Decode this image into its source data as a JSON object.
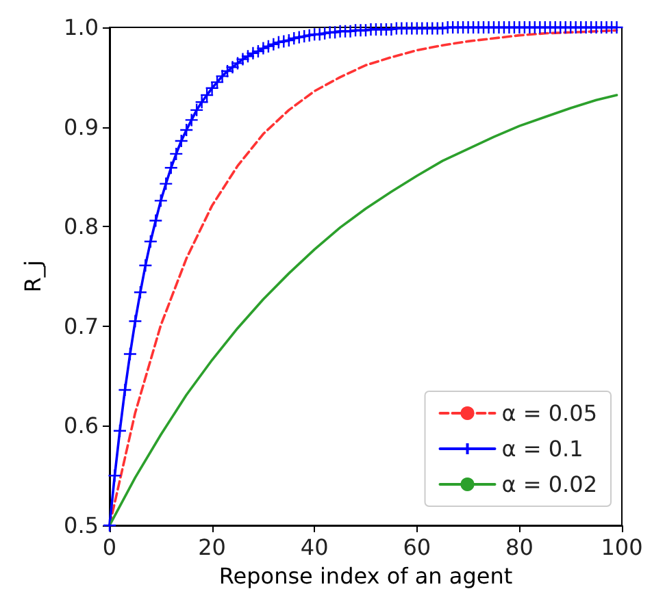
{
  "chart_data": {
    "type": "line",
    "xlabel": "Reponse index of an agent",
    "ylabel": "R_j",
    "xlim": [
      0,
      100
    ],
    "xticks": [
      0,
      20,
      40,
      60,
      80,
      100
    ],
    "ylim": [
      0.5,
      1.0
    ],
    "yticks": [
      0.5,
      0.6,
      0.7,
      0.8,
      0.9,
      {
        "value": 1.0,
        "label": "1.0"
      }
    ],
    "grid": false,
    "legend": "bottom right",
    "series": [
      {
        "name": "α = 0.05",
        "color": "#ff3333",
        "line_style": "dashed",
        "marker": "none",
        "x": [
          0,
          5,
          10,
          15,
          20,
          25,
          30,
          35,
          40,
          45,
          50,
          55,
          60,
          65,
          70,
          75,
          80,
          85,
          90,
          95,
          99
        ],
        "values": [
          0.5,
          0.613,
          0.701,
          0.768,
          0.821,
          0.861,
          0.893,
          0.917,
          0.936,
          0.95,
          0.962,
          0.97,
          0.977,
          0.982,
          0.986,
          0.989,
          0.992,
          0.994,
          0.995,
          0.996,
          0.997
        ]
      },
      {
        "name": "α = 0.1",
        "color": "#0000ff",
        "line_style": "solid",
        "marker": "cross",
        "x": [
          0,
          1,
          2,
          3,
          4,
          5,
          6,
          7,
          8,
          9,
          10,
          11,
          12,
          13,
          14,
          15,
          16,
          17,
          18,
          19,
          20,
          21,
          22,
          23,
          24,
          25,
          26,
          27,
          28,
          29,
          30,
          31,
          32,
          33,
          34,
          35,
          36,
          37,
          38,
          39,
          40,
          41,
          42,
          43,
          44,
          45,
          46,
          47,
          48,
          49,
          50,
          51,
          52,
          53,
          54,
          55,
          56,
          57,
          58,
          59,
          60,
          61,
          62,
          63,
          64,
          65,
          66,
          67,
          68,
          69,
          70,
          71,
          72,
          73,
          74,
          75,
          76,
          77,
          78,
          79,
          80,
          81,
          82,
          83,
          84,
          85,
          86,
          87,
          88,
          89,
          90,
          91,
          92,
          93,
          94,
          95,
          96,
          97,
          98,
          99
        ],
        "values": [
          0.5,
          0.55,
          0.595,
          0.636,
          0.672,
          0.705,
          0.734,
          0.761,
          0.785,
          0.806,
          0.826,
          0.843,
          0.859,
          0.873,
          0.886,
          0.897,
          0.907,
          0.917,
          0.925,
          0.932,
          0.939,
          0.945,
          0.951,
          0.956,
          0.96,
          0.964,
          0.968,
          0.971,
          0.974,
          0.976,
          0.979,
          0.981,
          0.983,
          0.985,
          0.986,
          0.987,
          0.989,
          0.99,
          0.991,
          0.992,
          0.993,
          0.993,
          0.994,
          0.995,
          0.995,
          0.996,
          0.996,
          0.996,
          0.997,
          0.997,
          0.997,
          0.998,
          0.998,
          0.998,
          0.998,
          0.998,
          0.999,
          0.999,
          0.999,
          0.999,
          0.999,
          0.999,
          0.999,
          0.999,
          0.999,
          0.999,
          1,
          1,
          1,
          1,
          1,
          1,
          1,
          1,
          1,
          1,
          1,
          1,
          1,
          1,
          1,
          1,
          1,
          1,
          1,
          1,
          1,
          1,
          1,
          1,
          1,
          1,
          1,
          1,
          1,
          1,
          1,
          1,
          1,
          1
        ]
      },
      {
        "name": "α = 0.02",
        "color": "#2ca02c",
        "line_style": "solid",
        "marker": "none",
        "x": [
          0,
          5,
          10,
          15,
          20,
          25,
          30,
          35,
          40,
          45,
          50,
          55,
          60,
          65,
          70,
          75,
          80,
          85,
          90,
          95,
          99
        ],
        "values": [
          0.5,
          0.548,
          0.591,
          0.631,
          0.666,
          0.698,
          0.727,
          0.753,
          0.777,
          0.799,
          0.818,
          0.835,
          0.851,
          0.866,
          0.878,
          0.89,
          0.901,
          0.91,
          0.919,
          0.927,
          0.932
        ]
      }
    ]
  }
}
